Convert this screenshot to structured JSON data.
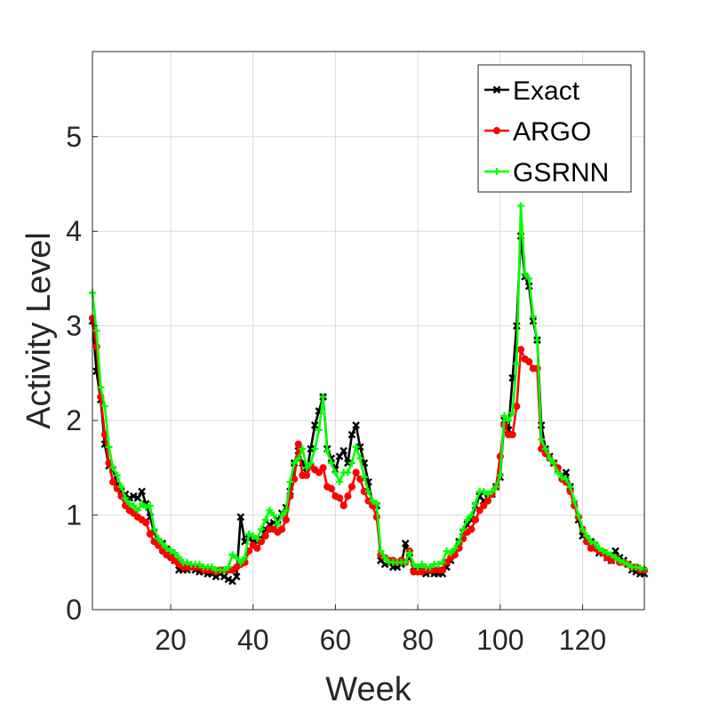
{
  "chart_data": {
    "type": "line",
    "title": "",
    "xlabel": "Week",
    "ylabel": "Activity Level",
    "xlim": [
      1,
      135
    ],
    "ylim": [
      0,
      5.9
    ],
    "xticks": [
      20,
      40,
      60,
      80,
      100,
      120
    ],
    "yticks": [
      0,
      1,
      2,
      3,
      4,
      5
    ],
    "grid": true,
    "legend_position": "top-right",
    "series": [
      {
        "name": "Exact",
        "color": "#000000",
        "marker": "x",
        "x": [
          1,
          2,
          3,
          4,
          5,
          6,
          7,
          8,
          9,
          10,
          11,
          12,
          13,
          14,
          15,
          16,
          17,
          18,
          19,
          20,
          21,
          22,
          23,
          24,
          25,
          26,
          27,
          28,
          29,
          30,
          31,
          32,
          33,
          34,
          35,
          36,
          37,
          38,
          39,
          40,
          41,
          42,
          43,
          44,
          45,
          46,
          47,
          48,
          49,
          50,
          51,
          52,
          53,
          54,
          55,
          56,
          57,
          58,
          59,
          60,
          61,
          62,
          63,
          64,
          65,
          66,
          67,
          68,
          69,
          70,
          71,
          72,
          73,
          74,
          75,
          76,
          77,
          78,
          79,
          80,
          81,
          82,
          83,
          84,
          85,
          86,
          87,
          88,
          89,
          90,
          91,
          92,
          93,
          94,
          95,
          96,
          97,
          98,
          99,
          100,
          101,
          102,
          103,
          104,
          105,
          106,
          107,
          108,
          109,
          110,
          111,
          112,
          113,
          114,
          115,
          116,
          117,
          118,
          119,
          120,
          121,
          122,
          123,
          124,
          125,
          126,
          127,
          128,
          129,
          130,
          131,
          132,
          133,
          134,
          135
        ],
        "values": [
          3.05,
          2.52,
          2.22,
          1.75,
          1.52,
          1.48,
          1.32,
          1.25,
          1.22,
          1.18,
          1.2,
          1.18,
          1.25,
          1.12,
          0.98,
          0.82,
          0.72,
          0.7,
          0.64,
          0.6,
          0.52,
          0.42,
          0.42,
          0.42,
          0.45,
          0.42,
          0.4,
          0.4,
          0.38,
          0.38,
          0.35,
          0.38,
          0.35,
          0.32,
          0.3,
          0.35,
          0.98,
          0.72,
          0.75,
          0.72,
          0.72,
          0.75,
          0.85,
          0.9,
          0.92,
          0.95,
          1.02,
          1.08,
          1.25,
          1.55,
          1.68,
          1.55,
          1.45,
          1.7,
          1.95,
          2.1,
          2.25,
          1.7,
          1.6,
          1.48,
          1.62,
          1.68,
          1.55,
          1.85,
          1.95,
          1.72,
          1.55,
          1.35,
          1.12,
          1.1,
          0.52,
          0.48,
          0.5,
          0.45,
          0.45,
          0.48,
          0.7,
          0.55,
          0.45,
          0.45,
          0.42,
          0.38,
          0.4,
          0.38,
          0.38,
          0.38,
          0.45,
          0.52,
          0.6,
          0.72,
          0.82,
          0.9,
          0.95,
          1.1,
          1.2,
          1.15,
          1.18,
          1.22,
          1.3,
          1.4,
          2.0,
          1.9,
          2.45,
          3.0,
          3.95,
          3.52,
          3.42,
          3.05,
          2.85,
          1.95,
          1.7,
          1.62,
          1.55,
          1.48,
          1.42,
          1.45,
          1.3,
          1.12,
          0.95,
          0.78,
          0.75,
          0.72,
          0.68,
          0.6,
          0.6,
          0.55,
          0.52,
          0.62,
          0.55,
          0.52,
          0.48,
          0.42,
          0.4,
          0.38,
          0.38
        ]
      },
      {
        "name": "ARGO",
        "color": "#ff0000",
        "marker": "o",
        "x": [
          1,
          2,
          3,
          4,
          5,
          6,
          7,
          8,
          9,
          10,
          11,
          12,
          13,
          14,
          15,
          16,
          17,
          18,
          19,
          20,
          21,
          22,
          23,
          24,
          25,
          26,
          27,
          28,
          29,
          30,
          31,
          32,
          33,
          34,
          35,
          36,
          37,
          38,
          39,
          40,
          41,
          42,
          43,
          44,
          45,
          46,
          47,
          48,
          49,
          50,
          51,
          52,
          53,
          54,
          55,
          56,
          57,
          58,
          59,
          60,
          61,
          62,
          63,
          64,
          65,
          66,
          67,
          68,
          69,
          70,
          71,
          72,
          73,
          74,
          75,
          76,
          77,
          78,
          79,
          80,
          81,
          82,
          83,
          84,
          85,
          86,
          87,
          88,
          89,
          90,
          91,
          92,
          93,
          94,
          95,
          96,
          97,
          98,
          99,
          100,
          101,
          102,
          103,
          104,
          105,
          106,
          107,
          108,
          109,
          110,
          111,
          112,
          113,
          114,
          115,
          116,
          117,
          118,
          119,
          120,
          121,
          122,
          123,
          124,
          125,
          126,
          127,
          128,
          129,
          130,
          131,
          132,
          133,
          134,
          135
        ],
        "values": [
          3.08,
          2.78,
          2.25,
          1.85,
          1.55,
          1.35,
          1.28,
          1.2,
          1.1,
          1.05,
          1.02,
          0.98,
          0.95,
          0.92,
          0.8,
          0.72,
          0.68,
          0.62,
          0.58,
          0.55,
          0.52,
          0.48,
          0.45,
          0.45,
          0.45,
          0.45,
          0.45,
          0.42,
          0.42,
          0.42,
          0.4,
          0.42,
          0.42,
          0.42,
          0.42,
          0.45,
          0.48,
          0.5,
          0.62,
          0.68,
          0.65,
          0.72,
          0.78,
          0.85,
          0.85,
          0.82,
          0.85,
          0.95,
          1.2,
          1.38,
          1.75,
          1.42,
          1.42,
          1.52,
          1.48,
          1.45,
          1.5,
          1.3,
          1.28,
          1.2,
          1.18,
          1.1,
          1.2,
          1.3,
          1.45,
          1.38,
          1.25,
          1.15,
          1.1,
          0.98,
          0.58,
          0.55,
          0.52,
          0.52,
          0.5,
          0.52,
          0.5,
          0.62,
          0.4,
          0.4,
          0.4,
          0.42,
          0.42,
          0.42,
          0.42,
          0.42,
          0.5,
          0.55,
          0.58,
          0.65,
          0.75,
          0.82,
          0.85,
          0.95,
          1.05,
          1.1,
          1.15,
          1.22,
          1.3,
          1.62,
          1.95,
          1.85,
          1.85,
          2.15,
          2.75,
          2.65,
          2.62,
          2.55,
          2.55,
          1.7,
          1.65,
          1.6,
          1.55,
          1.5,
          1.38,
          1.35,
          1.25,
          1.1,
          0.98,
          0.85,
          0.72,
          0.65,
          0.65,
          0.62,
          0.6,
          0.55,
          0.52,
          0.55,
          0.5,
          0.5,
          0.48,
          0.45,
          0.45,
          0.42,
          0.42
        ]
      },
      {
        "name": "GSRNN",
        "color": "#00ff00",
        "marker": "+",
        "x": [
          1,
          2,
          3,
          4,
          5,
          6,
          7,
          8,
          9,
          10,
          11,
          12,
          13,
          14,
          15,
          16,
          17,
          18,
          19,
          20,
          21,
          22,
          23,
          24,
          25,
          26,
          27,
          28,
          29,
          30,
          31,
          32,
          33,
          34,
          35,
          36,
          37,
          38,
          39,
          40,
          41,
          42,
          43,
          44,
          45,
          46,
          47,
          48,
          49,
          50,
          51,
          52,
          53,
          54,
          55,
          56,
          57,
          58,
          59,
          60,
          61,
          62,
          63,
          64,
          65,
          66,
          67,
          68,
          69,
          70,
          71,
          72,
          73,
          74,
          75,
          76,
          77,
          78,
          79,
          80,
          81,
          82,
          83,
          84,
          85,
          86,
          87,
          88,
          89,
          90,
          91,
          92,
          93,
          94,
          95,
          96,
          97,
          98,
          99,
          100,
          101,
          102,
          103,
          104,
          105,
          106,
          107,
          108,
          109,
          110,
          111,
          112,
          113,
          114,
          115,
          116,
          117,
          118,
          119,
          120,
          121,
          122,
          123,
          124,
          125,
          126,
          127,
          128,
          129,
          130,
          131,
          132,
          133,
          134,
          135
        ],
        "values": [
          3.35,
          2.95,
          2.35,
          2.15,
          1.72,
          1.5,
          1.42,
          1.3,
          1.18,
          1.12,
          1.1,
          1.05,
          1.12,
          1.08,
          1.1,
          0.85,
          0.75,
          0.7,
          0.65,
          0.62,
          0.6,
          0.55,
          0.5,
          0.5,
          0.48,
          0.48,
          0.48,
          0.45,
          0.45,
          0.45,
          0.42,
          0.42,
          0.42,
          0.45,
          0.58,
          0.55,
          0.5,
          0.55,
          0.8,
          0.78,
          0.75,
          0.85,
          0.95,
          1.05,
          1.0,
          0.9,
          1.0,
          1.05,
          1.35,
          1.55,
          1.6,
          1.7,
          1.5,
          1.55,
          1.7,
          1.9,
          2.25,
          1.68,
          1.55,
          1.45,
          1.35,
          1.45,
          1.45,
          1.55,
          1.72,
          1.6,
          1.4,
          1.25,
          1.15,
          1.12,
          0.62,
          0.55,
          0.5,
          0.5,
          0.5,
          0.5,
          0.5,
          0.6,
          0.48,
          0.45,
          0.48,
          0.45,
          0.45,
          0.48,
          0.48,
          0.5,
          0.62,
          0.6,
          0.65,
          0.72,
          0.85,
          0.95,
          1.0,
          1.12,
          1.25,
          1.25,
          1.22,
          1.25,
          1.3,
          1.42,
          2.05,
          2.0,
          2.08,
          2.6,
          4.27,
          3.55,
          3.5,
          3.1,
          2.85,
          1.8,
          1.7,
          1.6,
          1.55,
          1.45,
          1.4,
          1.38,
          1.3,
          1.15,
          1.0,
          0.85,
          0.78,
          0.72,
          0.7,
          0.65,
          0.62,
          0.6,
          0.58,
          0.55,
          0.52,
          0.5,
          0.48,
          0.45,
          0.45,
          0.44,
          0.43
        ]
      }
    ]
  }
}
